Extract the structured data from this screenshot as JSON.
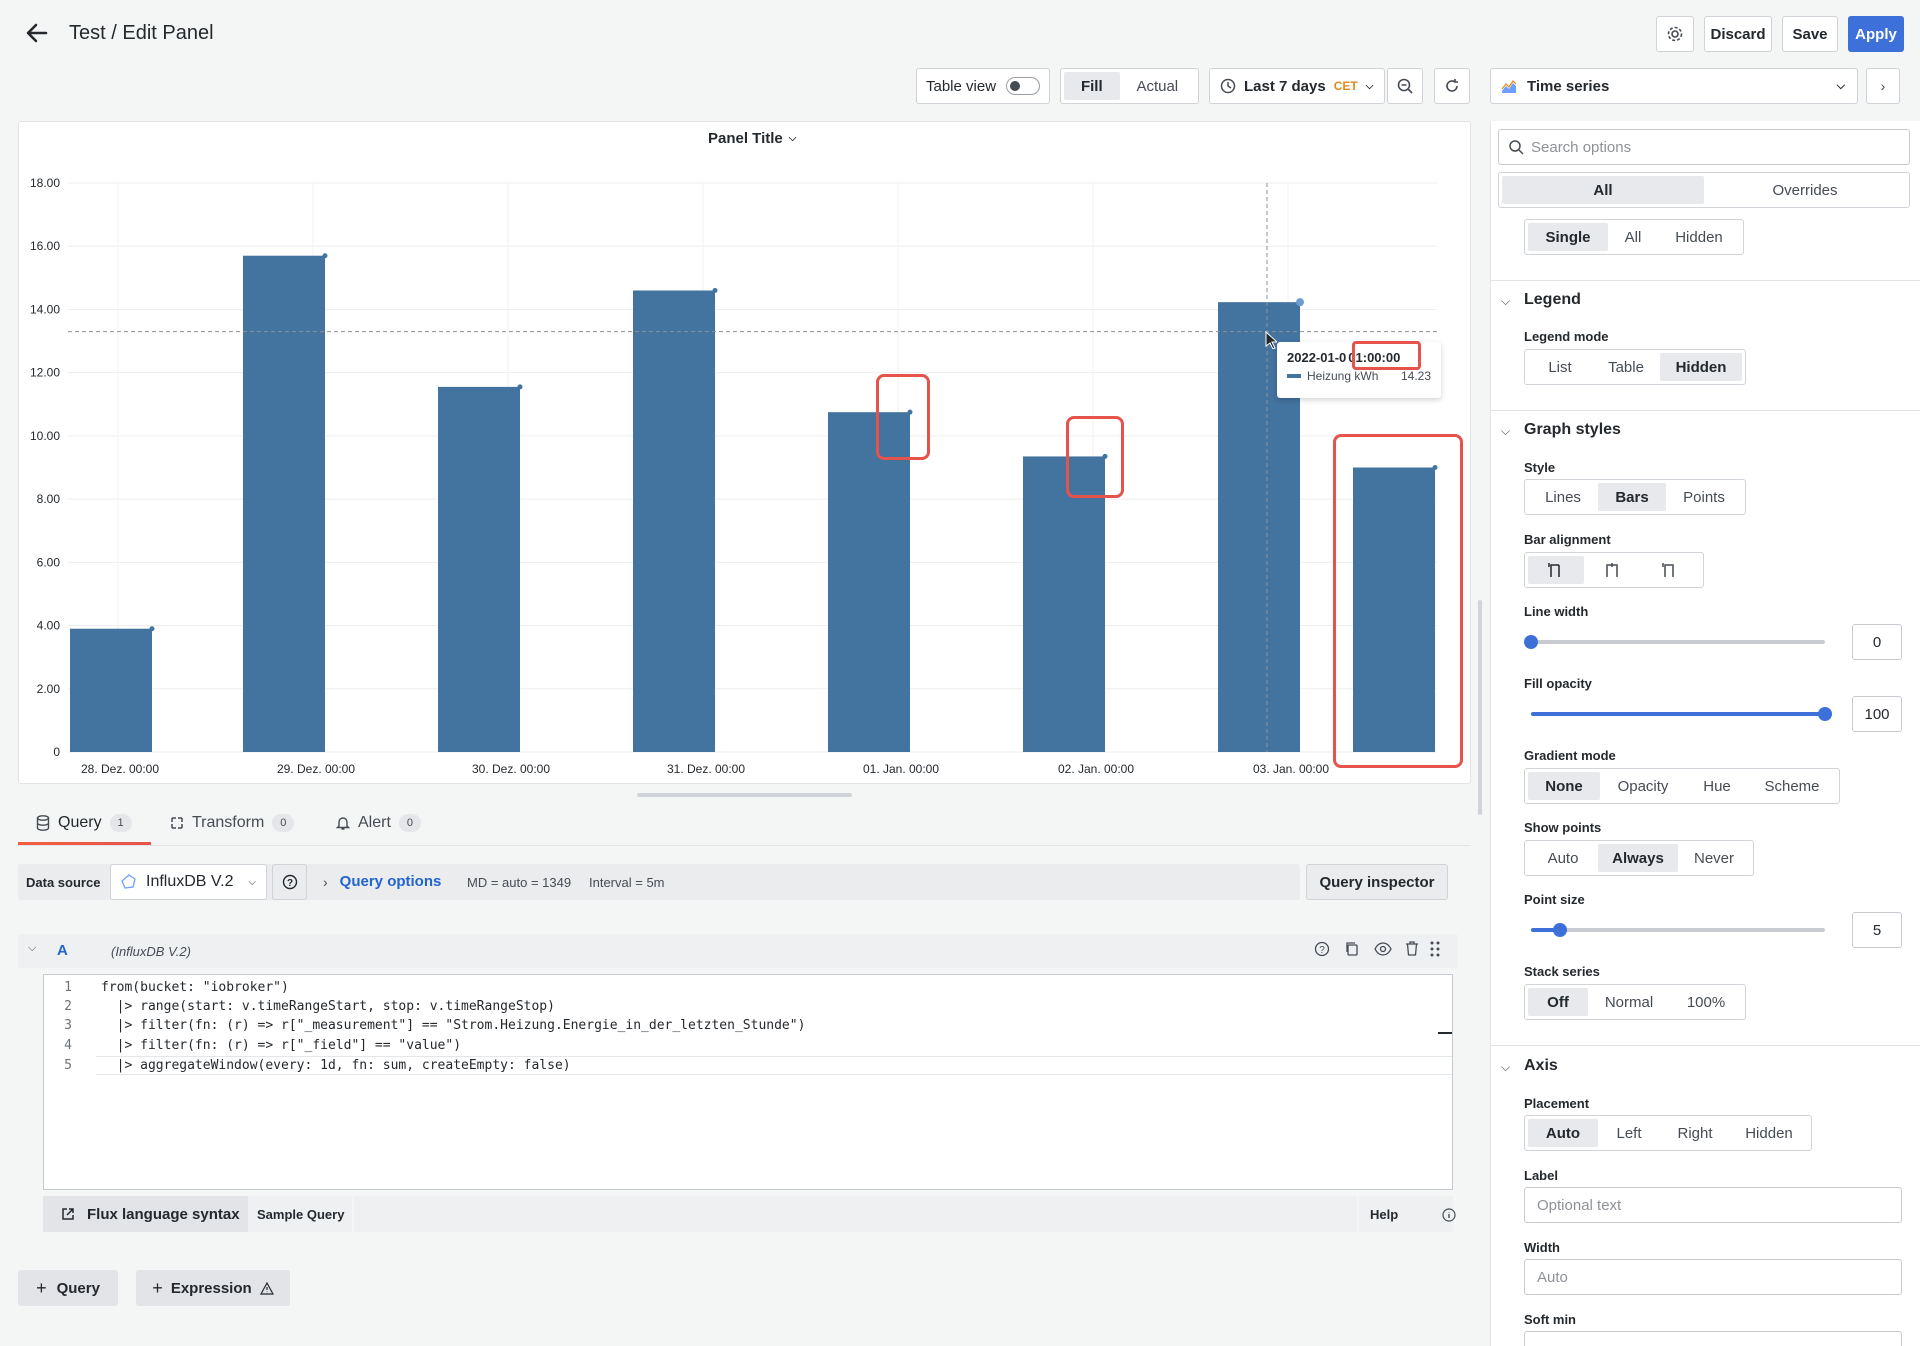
{
  "header": {
    "title": "Test / Edit Panel",
    "discard_label": "Discard",
    "save_label": "Save",
    "apply_label": "Apply"
  },
  "toolbar": {
    "table_view_label": "Table view",
    "fill_label": "Fill",
    "actual_label": "Actual",
    "time_range_label": "Last 7 days",
    "timezone_label": "CET",
    "visualization_label": "Time series"
  },
  "panel": {
    "title": "Panel Title",
    "tooltip": {
      "time": "2022-01-0",
      "time_highlight": "01:00:00",
      "series_name": "Heizung kWh",
      "series_value": "14.23"
    }
  },
  "chart_data": {
    "type": "bar",
    "categories": [
      "28. Dez. 00:00",
      "29. Dez. 00:00",
      "30. Dez. 00:00",
      "31. Dez. 00:00",
      "01. Jan. 00:00",
      "02. Jan. 00:00",
      "03. Jan. 00:00",
      ""
    ],
    "values": [
      3.9,
      15.7,
      11.55,
      14.6,
      10.75,
      9.35,
      14.23,
      9.0
    ],
    "y_ticks": [
      "0",
      "2.00",
      "4.00",
      "6.00",
      "8.00",
      "10.00",
      "12.00",
      "14.00",
      "16.00",
      "18.00"
    ],
    "ylim": [
      0,
      18
    ],
    "grid": true,
    "legend": "hidden",
    "color": "#43739f"
  },
  "query_tabs": [
    {
      "label": "Query",
      "count": "1"
    },
    {
      "label": "Transform",
      "count": "0"
    },
    {
      "label": "Alert",
      "count": "0"
    }
  ],
  "datasource": {
    "label": "Data source",
    "name": "InfluxDB V.2",
    "query_options_label": "Query options",
    "md_info": "MD = auto = 1349",
    "interval_info": "Interval = 5m",
    "inspector_label": "Query inspector"
  },
  "query_row": {
    "ref": "A",
    "source": "(InfluxDB V.2)"
  },
  "code_lines": [
    "from(bucket: \"iobroker\")",
    "  |> range(start: v.timeRangeStart, stop: v.timeRangeStop)",
    "  |> filter(fn: (r) => r[\"_measurement\"] == \"Strom.Heizung.Energie_in_der_letzten_Stunde\")",
    "  |> filter(fn: (r) => r[\"_field\"] == \"value\")",
    "  |> aggregateWindow(every: 1d, fn: sum, createEmpty: false)"
  ],
  "editor_footer": {
    "flux_label": "Flux language syntax",
    "sample_label": "Sample Query",
    "help_label": "Help"
  },
  "add_buttons": {
    "query_label": "Query",
    "expression_label": "Expression"
  },
  "options": {
    "search_placeholder": "Search options",
    "tab_all": "All",
    "tab_overrides": "Overrides",
    "tooltip_mode": [
      "Single",
      "All",
      "Hidden"
    ],
    "legend": {
      "title": "Legend",
      "mode_label": "Legend mode",
      "modes": [
        "List",
        "Table",
        "Hidden"
      ]
    },
    "graph_styles": {
      "title": "Graph styles",
      "style_label": "Style",
      "styles": [
        "Lines",
        "Bars",
        "Points"
      ],
      "bar_alignment_label": "Bar alignment",
      "line_width_label": "Line width",
      "line_width_value": "0",
      "line_width_fraction": 0,
      "fill_opacity_label": "Fill opacity",
      "fill_opacity_value": "100",
      "fill_opacity_fraction": 1,
      "gradient_label": "Gradient mode",
      "gradients": [
        "None",
        "Opacity",
        "Hue",
        "Scheme"
      ],
      "show_points_label": "Show points",
      "show_points": [
        "Auto",
        "Always",
        "Never"
      ],
      "point_size_label": "Point size",
      "point_size_value": "5",
      "point_size_fraction": 0.1,
      "stack_label": "Stack series",
      "stack": [
        "Off",
        "Normal",
        "100%"
      ]
    },
    "axis": {
      "title": "Axis",
      "placement_label": "Placement",
      "placements": [
        "Auto",
        "Left",
        "Right",
        "Hidden"
      ],
      "label_label": "Label",
      "label_placeholder": "Optional text",
      "width_label": "Width",
      "width_placeholder": "Auto",
      "soft_min_label": "Soft min"
    }
  }
}
